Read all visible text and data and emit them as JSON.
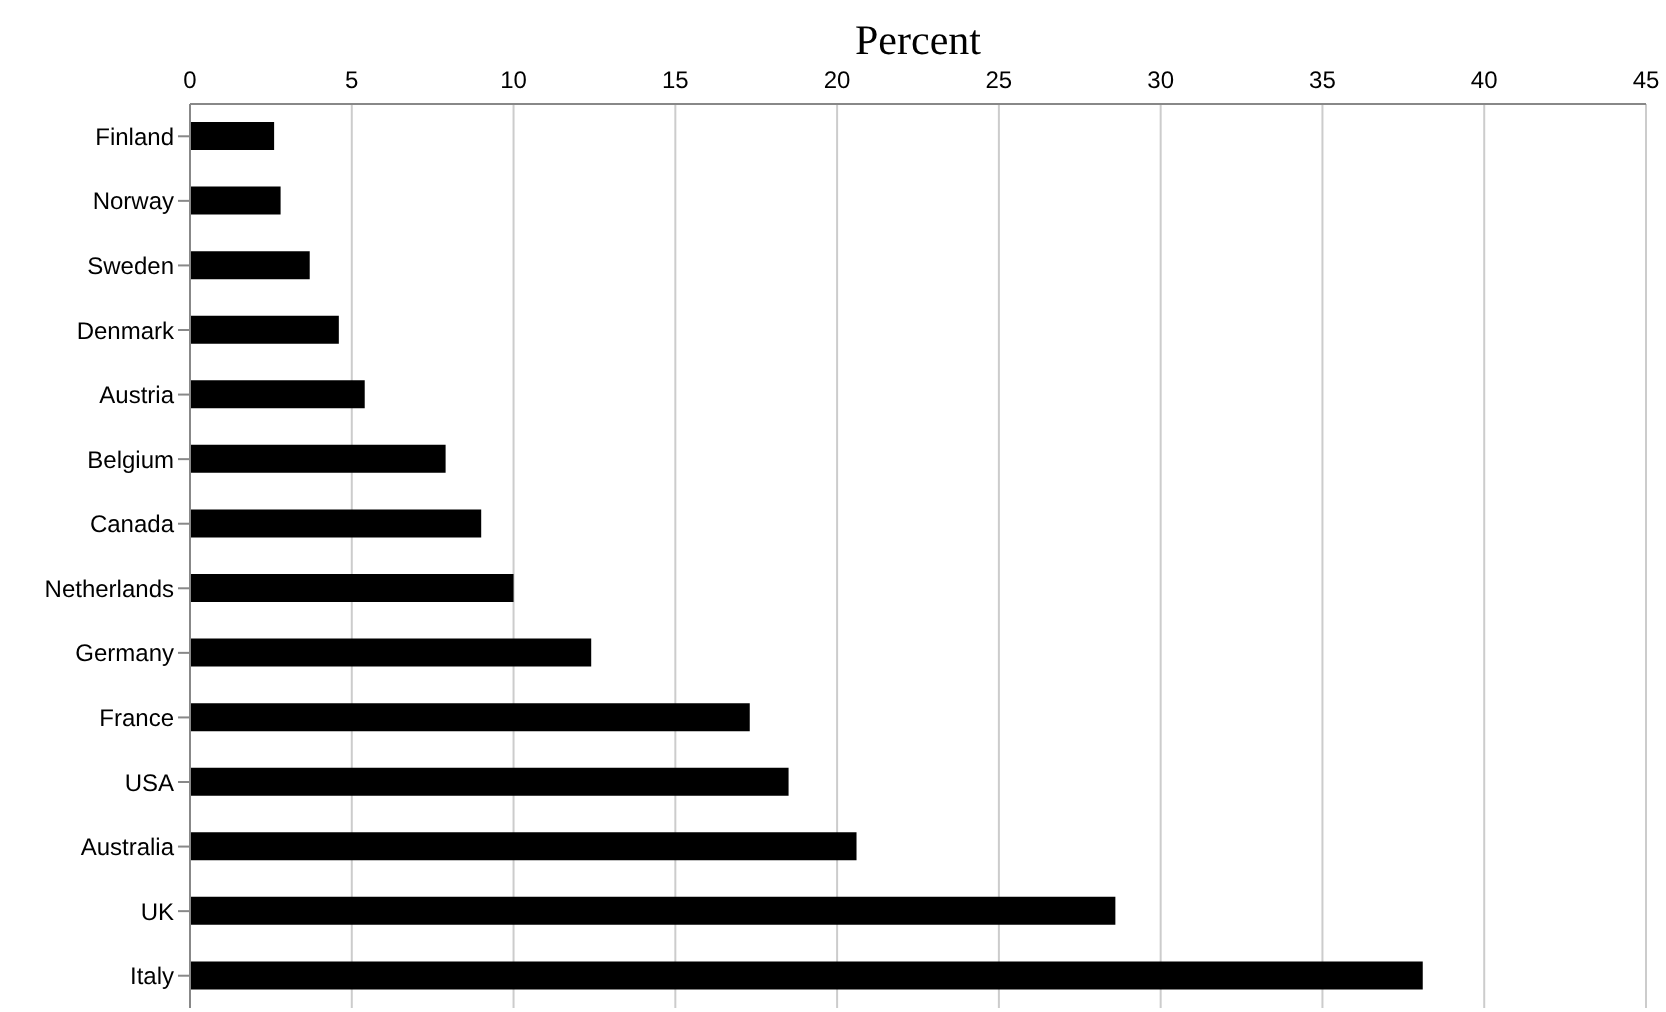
{
  "chart_data": {
    "type": "bar",
    "orientation": "horizontal",
    "xlabel": "Percent",
    "categories": [
      "Finland",
      "Norway",
      "Sweden",
      "Denmark",
      "Austria",
      "Belgium",
      "Canada",
      "Netherlands",
      "Germany",
      "France",
      "USA",
      "Australia",
      "UK",
      "Italy"
    ],
    "values": [
      2.6,
      2.8,
      3.7,
      4.6,
      5.4,
      7.9,
      9.0,
      10.0,
      12.4,
      17.3,
      18.5,
      20.6,
      28.6,
      38.1
    ],
    "color": "#000000",
    "xlim": [
      0,
      45
    ],
    "xticks": [
      0,
      5,
      10,
      15,
      20,
      25,
      30,
      35,
      40,
      45
    ],
    "grid": "x"
  }
}
